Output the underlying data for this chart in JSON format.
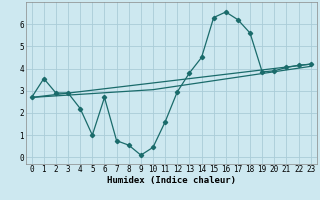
{
  "xlabel": "Humidex (Indice chaleur)",
  "ylabel": "",
  "bg_color": "#cde8f0",
  "grid_color": "#aaccd8",
  "line_color": "#1a6b6b",
  "xlim": [
    -0.5,
    23.5
  ],
  "ylim": [
    -0.3,
    7.0
  ],
  "yticks": [
    0,
    1,
    2,
    3,
    4,
    5,
    6
  ],
  "xticks": [
    0,
    1,
    2,
    3,
    4,
    5,
    6,
    7,
    8,
    9,
    10,
    11,
    12,
    13,
    14,
    15,
    16,
    17,
    18,
    19,
    20,
    21,
    22,
    23
  ],
  "line1_x": [
    0,
    1,
    2,
    3,
    4,
    5,
    6,
    7,
    8,
    9,
    10,
    11,
    12,
    13,
    14,
    15,
    16,
    17,
    18,
    19,
    20,
    21,
    22,
    23
  ],
  "line1_y": [
    2.7,
    3.55,
    2.9,
    2.9,
    2.2,
    1.0,
    2.7,
    0.75,
    0.55,
    0.1,
    0.45,
    1.6,
    2.95,
    3.8,
    4.5,
    6.3,
    6.55,
    6.2,
    5.6,
    3.85,
    3.9,
    4.05,
    4.15,
    4.2
  ],
  "line2_x": [
    0,
    10,
    23
  ],
  "line2_y": [
    2.7,
    3.05,
    4.1
  ],
  "line3_x": [
    0,
    23
  ],
  "line3_y": [
    2.7,
    4.2
  ]
}
